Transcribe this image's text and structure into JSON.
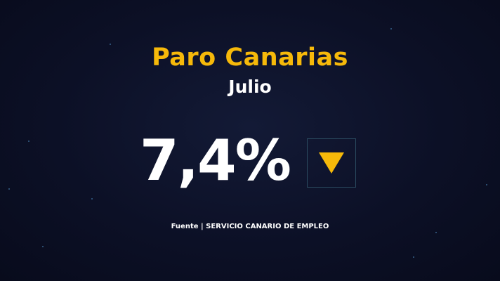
{
  "graphic": {
    "title": "Paro Canarias",
    "subtitle": "Julio",
    "value": "7,4%",
    "trend_icon": "down-triangle-icon",
    "source": "Fuente | SERVICIO CANARIO DE EMPLEO"
  },
  "colors": {
    "accent": "#f6b90a",
    "background": "#0c1026",
    "text": "#ffffff"
  }
}
